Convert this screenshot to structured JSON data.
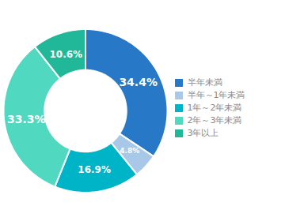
{
  "chart_data": {
    "type": "pie",
    "categories": [
      "半年未満",
      "半年～1年未満",
      "1年～2年未満",
      "2年～3年未満",
      "3年以上"
    ],
    "values": [
      34.4,
      4.8,
      16.9,
      33.3,
      10.6
    ],
    "value_labels": [
      "34.4%",
      "4.8%",
      "16.9%",
      "33.3%",
      "10.6%"
    ],
    "colors": [
      "#2878c8",
      "#a8c8e8",
      "#00b4c8",
      "#50d8c0",
      "#20b898"
    ],
    "data_labels": true,
    "legend": "right"
  }
}
